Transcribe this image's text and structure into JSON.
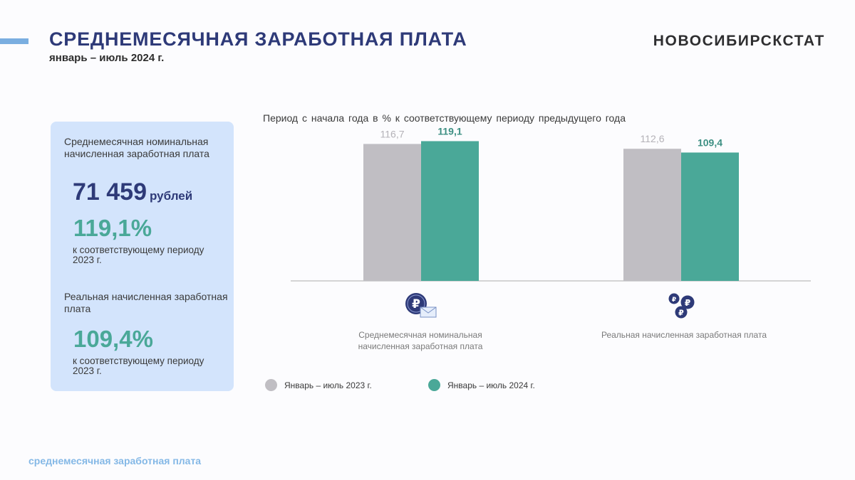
{
  "header": {
    "title": "СРЕДНЕМЕСЯЧНАЯ ЗАРАБОТНАЯ ПЛАТА",
    "subtitle": "январь – июль 2024 г.",
    "organization": "НОВОСИБИРСКСТАТ"
  },
  "card": {
    "nominal_label": "Среднемесячная номинальная начисленная заработная плата",
    "amount": "71 459",
    "amount_unit": "рублей",
    "nominal_percent": "119,1%",
    "nominal_note": "к соответствующему периоду 2023 г.",
    "real_label": "Реальная начисленная заработная плата",
    "real_percent": "109,4%",
    "real_note": "к соответствующему периоду 2023 г."
  },
  "footer": {
    "text": "среднемесячная заработная плата"
  },
  "colors": {
    "accent": "#7aaee0",
    "navy": "#2e3a78",
    "teal": "#4aa898",
    "gray": "#c0bec3",
    "card_bg": "#d3e4fc"
  },
  "chart_data": {
    "type": "bar",
    "title": "Период с начала года в % к соответствующему периоду предыдущего года",
    "categories": [
      "Среднемесячная номинальная начисленная заработная плата",
      "Реальная начисленная заработная плата"
    ],
    "category_icons": [
      "ruble-coin-envelope-icon",
      "ruble-coins-icon"
    ],
    "series": [
      {
        "name": "Январь – июль 2023 г.",
        "values": [
          116.7,
          112.6
        ],
        "labels": [
          "116,7",
          "112,6"
        ],
        "color": "#c0bec3",
        "label_color": "#b4b2b8"
      },
      {
        "name": "Январь – июль 2024 г.",
        "values": [
          119.1,
          109.4
        ],
        "labels": [
          "119,1",
          "109,4"
        ],
        "color": "#4aa898",
        "label_color": "#3d8f83"
      }
    ],
    "ylim": [
      0,
      120
    ],
    "grid": false,
    "legend_position": "bottom-left"
  }
}
